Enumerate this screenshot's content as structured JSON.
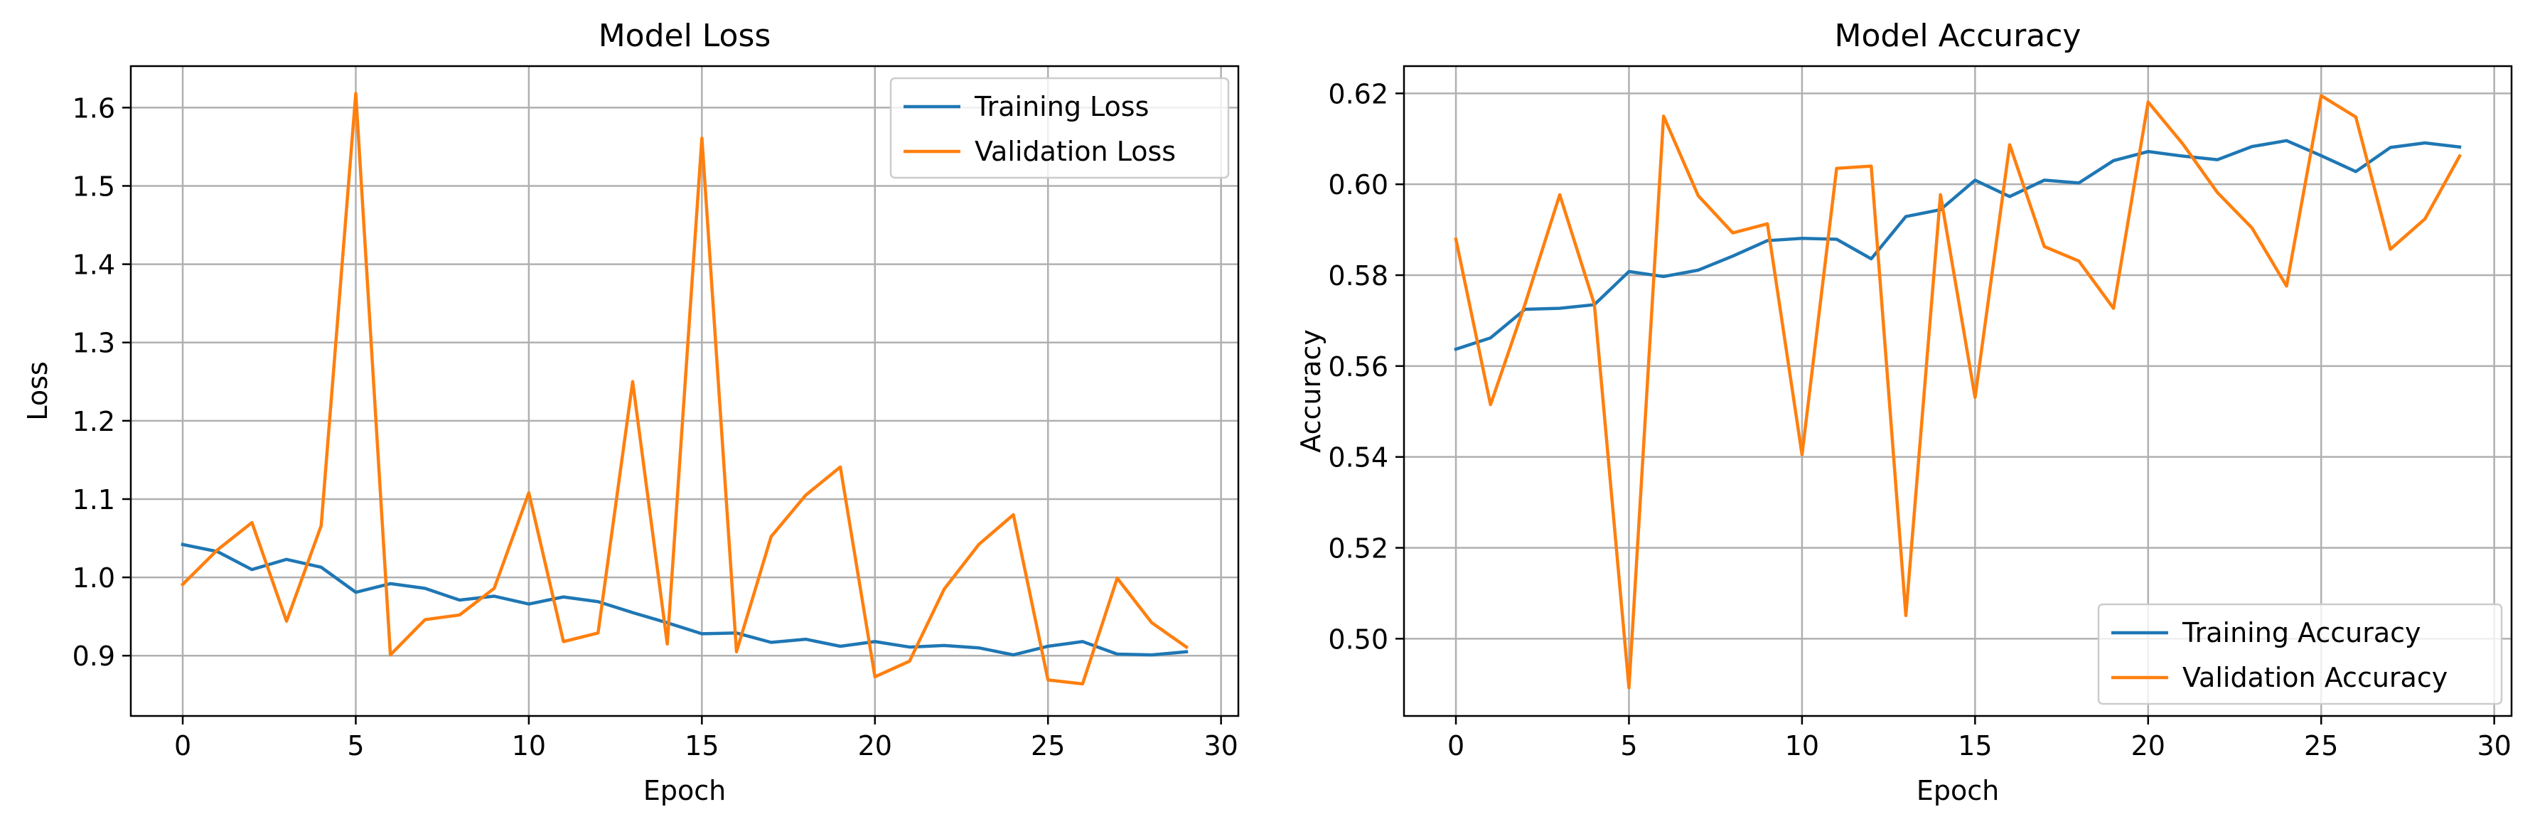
{
  "chart_data": [
    {
      "type": "line",
      "title": "Model Loss",
      "xlabel": "Epoch",
      "ylabel": "Loss",
      "xlim": [
        -1.5,
        30.5
      ],
      "ylim": [
        0.823,
        1.653
      ],
      "xticks": [
        0,
        5,
        10,
        15,
        20,
        25,
        30
      ],
      "yticks": [
        0.9,
        1.0,
        1.1,
        1.2,
        1.3,
        1.4,
        1.5,
        1.6
      ],
      "ytick_labels": [
        "0.9",
        "1.0",
        "1.1",
        "1.2",
        "1.3",
        "1.4",
        "1.5",
        "1.6"
      ],
      "grid": true,
      "legend_loc": "upper right",
      "x": [
        0,
        1,
        2,
        3,
        4,
        5,
        6,
        7,
        8,
        9,
        10,
        11,
        12,
        13,
        14,
        15,
        16,
        17,
        18,
        19,
        20,
        21,
        22,
        23,
        24,
        25,
        26,
        27,
        28,
        29
      ],
      "series": [
        {
          "name": "Training Loss",
          "color": "#1f77b4",
          "values": [
            1.042,
            1.033,
            1.01,
            1.023,
            1.013,
            0.981,
            0.992,
            0.986,
            0.971,
            0.976,
            0.966,
            0.975,
            0.969,
            0.955,
            0.942,
            0.928,
            0.929,
            0.917,
            0.921,
            0.912,
            0.918,
            0.911,
            0.913,
            0.91,
            0.901,
            0.912,
            0.918,
            0.902,
            0.901,
            0.905
          ]
        },
        {
          "name": "Validation Loss",
          "color": "#ff7f0e",
          "values": [
            0.991,
            1.035,
            1.07,
            0.944,
            1.066,
            1.618,
            0.901,
            0.946,
            0.952,
            0.986,
            1.108,
            0.918,
            0.929,
            1.25,
            0.915,
            1.561,
            0.905,
            1.052,
            1.105,
            1.141,
            0.873,
            0.893,
            0.985,
            1.042,
            1.08,
            0.869,
            0.864,
            0.999,
            0.942,
            0.911
          ]
        }
      ]
    },
    {
      "type": "line",
      "title": "Model Accuracy",
      "xlabel": "Epoch",
      "ylabel": "Accuracy",
      "xlim": [
        -1.5,
        30.5
      ],
      "ylim": [
        0.483,
        0.626
      ],
      "xticks": [
        0,
        5,
        10,
        15,
        20,
        25,
        30
      ],
      "yticks": [
        0.5,
        0.52,
        0.54,
        0.56,
        0.58,
        0.6,
        0.62
      ],
      "ytick_labels": [
        "0.50",
        "0.52",
        "0.54",
        "0.56",
        "0.58",
        "0.60",
        "0.62"
      ],
      "grid": true,
      "legend_loc": "lower right",
      "x": [
        0,
        1,
        2,
        3,
        4,
        5,
        6,
        7,
        8,
        9,
        10,
        11,
        12,
        13,
        14,
        15,
        16,
        17,
        18,
        19,
        20,
        21,
        22,
        23,
        24,
        25,
        26,
        27,
        28,
        29
      ],
      "series": [
        {
          "name": "Training Accuracy",
          "color": "#1f77b4",
          "values": [
            0.5637,
            0.5662,
            0.5725,
            0.5727,
            0.5735,
            0.5808,
            0.5797,
            0.5811,
            0.5842,
            0.5876,
            0.5881,
            0.5879,
            0.5836,
            0.5929,
            0.5944,
            0.6009,
            0.5973,
            0.6009,
            0.6003,
            0.6052,
            0.6072,
            0.6062,
            0.6054,
            0.6083,
            0.6096,
            0.6063,
            0.6028,
            0.6081,
            0.6091,
            0.6082
          ]
        },
        {
          "name": "Validation Accuracy",
          "color": "#ff7f0e",
          "values": [
            0.5879,
            0.5515,
            0.5737,
            0.5977,
            0.5736,
            0.4892,
            0.615,
            0.5975,
            0.5893,
            0.5913,
            0.5405,
            0.6035,
            0.604,
            0.5051,
            0.5977,
            0.5531,
            0.6087,
            0.5863,
            0.5831,
            0.5727,
            0.6181,
            0.6089,
            0.5982,
            0.5904,
            0.5776,
            0.6195,
            0.6148,
            0.5857,
            0.5924,
            0.6062
          ]
        }
      ]
    }
  ]
}
